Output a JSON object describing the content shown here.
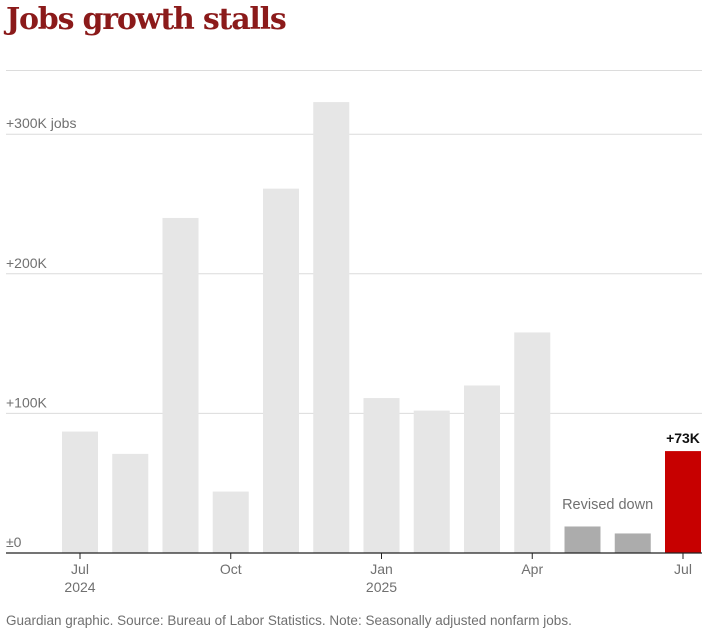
{
  "chart_data": {
    "type": "bar",
    "title": "Jobs growth stalls",
    "categories": [
      "Jul 2024",
      "Aug 2024",
      "Sep 2024",
      "Oct 2024",
      "Nov 2024",
      "Dec 2024",
      "Jan 2025",
      "Feb 2025",
      "Mar 2025",
      "Apr 2025",
      "May 2025",
      "Jun 2025",
      "Jul 2025"
    ],
    "values": [
      87,
      71,
      240,
      44,
      261,
      323,
      111,
      102,
      120,
      158,
      19,
      14,
      73
    ],
    "bar_colors": [
      "#e6e6e6",
      "#e6e6e6",
      "#e6e6e6",
      "#e6e6e6",
      "#e6e6e6",
      "#e6e6e6",
      "#e6e6e6",
      "#e6e6e6",
      "#e6e6e6",
      "#e6e6e6",
      "#acacac",
      "#acacac",
      "#c70000"
    ],
    "ylim": [
      0,
      330
    ],
    "yticks": [
      0,
      100,
      200,
      300
    ],
    "ytick_labels": [
      "±0",
      "+100K",
      "+200K",
      "+300K jobs"
    ],
    "xticks": [
      {
        "index": 0,
        "label": "Jul",
        "sublabel": "2024"
      },
      {
        "index": 3,
        "label": "Oct",
        "sublabel": ""
      },
      {
        "index": 6,
        "label": "Jan",
        "sublabel": "2025"
      },
      {
        "index": 9,
        "label": "Apr",
        "sublabel": ""
      },
      {
        "index": 12,
        "label": "Jul",
        "sublabel": ""
      }
    ],
    "annotations": [
      {
        "text": "Revised down",
        "index": 10.5
      },
      {
        "text": "+73K",
        "index": 12
      }
    ],
    "grid": true,
    "legend": "none"
  },
  "colors": {
    "title": "#8b1a1a",
    "bar_default": "#e6e6e6",
    "bar_revised": "#acacac",
    "bar_highlight": "#c70000",
    "grid": "#dcdcdc",
    "axis_text": "#707070"
  },
  "footer": "Guardian graphic. Source: Bureau of Labor Statistics. Note: Seasonally adjusted nonfarm jobs."
}
